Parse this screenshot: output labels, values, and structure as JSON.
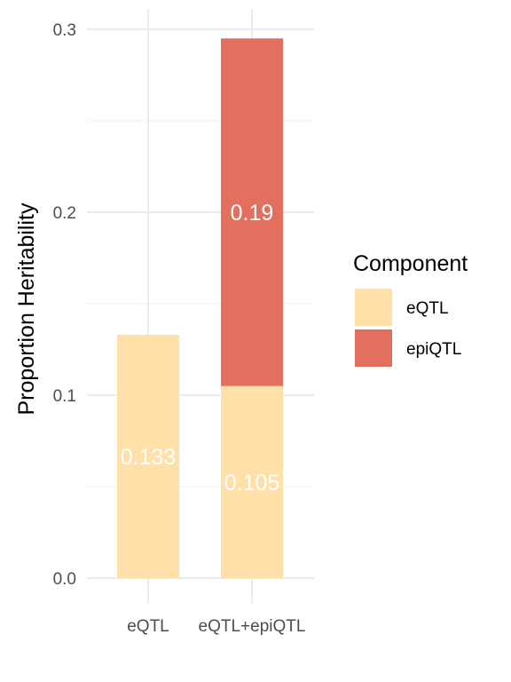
{
  "chart_data": {
    "type": "bar",
    "stacked": true,
    "categories": [
      "eQTL",
      "eQTL+epiQTL"
    ],
    "series": [
      {
        "name": "eQTL",
        "values": [
          0.133,
          0.105
        ],
        "color": "#FEE0A8"
      },
      {
        "name": "epiQTL",
        "values": [
          0,
          0.19
        ],
        "color": "#E36F5E"
      }
    ],
    "data_labels": [
      [
        "0.133",
        "0.105"
      ],
      [
        "",
        "0.19"
      ]
    ],
    "xlabel": "",
    "ylabel": "Proportion Heritability",
    "ylim": [
      -0.005,
      0.31
    ],
    "yticks": [
      0.0,
      0.1,
      0.2,
      0.3
    ],
    "ytick_labels": [
      "0.0",
      "0.1",
      "0.2",
      "0.3"
    ],
    "grid": true,
    "legend": {
      "title": "Component",
      "position": "right",
      "entries": [
        "eQTL",
        "epiQTL"
      ]
    }
  }
}
